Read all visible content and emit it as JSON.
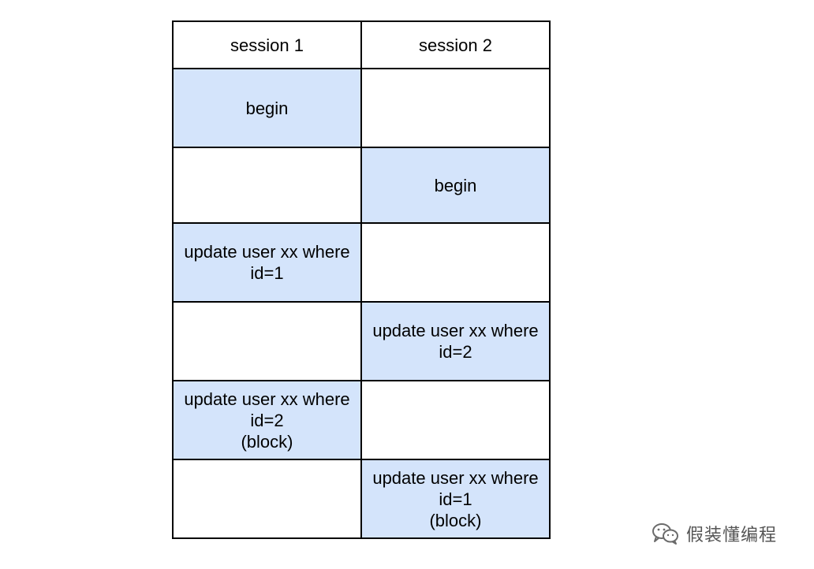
{
  "header": {
    "session1": "session 1",
    "session2": "session 2"
  },
  "rows": [
    {
      "session1": "begin",
      "session2": ""
    },
    {
      "session1": "",
      "session2": "begin"
    },
    {
      "session1": "update user xx where\nid=1",
      "session2": ""
    },
    {
      "session1": "",
      "session2": "update user xx where\nid=2"
    },
    {
      "session1": "update user xx where\nid=2\n(block)",
      "session2": ""
    },
    {
      "session1": "",
      "session2": "update user xx where\nid=1\n(block)"
    }
  ],
  "watermark": {
    "text": "假装懂编程",
    "icon": "wechat-icon"
  },
  "colors": {
    "filled_cell": "#d4e4fb",
    "border": "#000000"
  }
}
